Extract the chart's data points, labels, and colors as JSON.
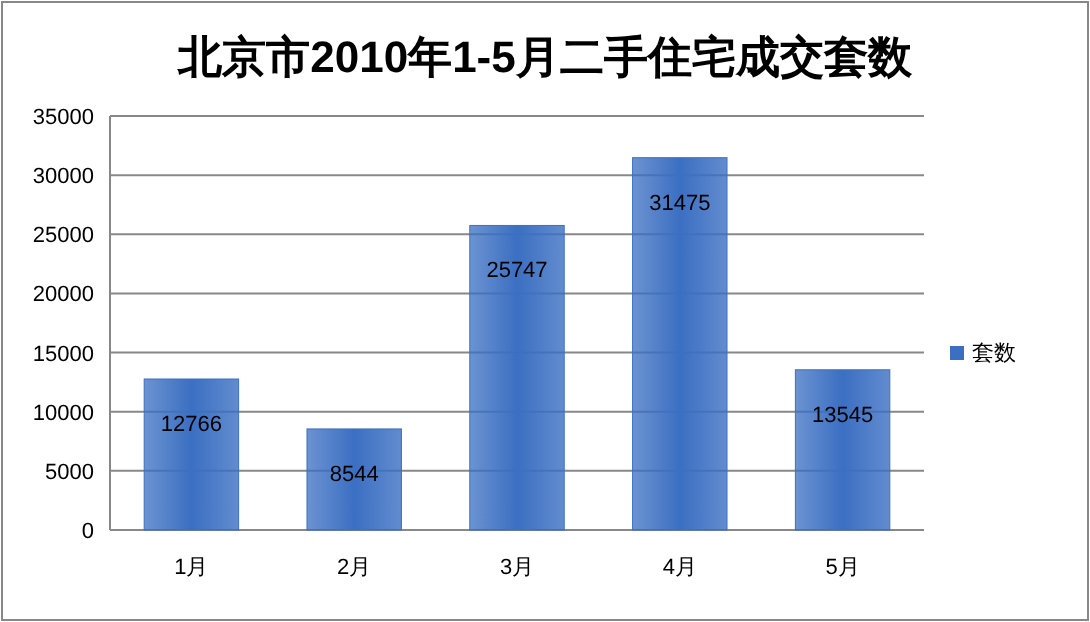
{
  "chart_data": {
    "type": "bar",
    "title": "北京市2010年1-5月二手住宅成交套数",
    "categories": [
      "1月",
      "2月",
      "3月",
      "4月",
      "5月"
    ],
    "series": [
      {
        "name": "套数",
        "color": "#3b6fc2",
        "values": [
          12766,
          8544,
          25747,
          31475,
          13545
        ]
      }
    ],
    "ylim": [
      0,
      35000
    ],
    "yticks": [
      0,
      5000,
      10000,
      15000,
      20000,
      25000,
      30000,
      35000
    ],
    "grid": "y",
    "legend": "right",
    "data_labels": true
  }
}
